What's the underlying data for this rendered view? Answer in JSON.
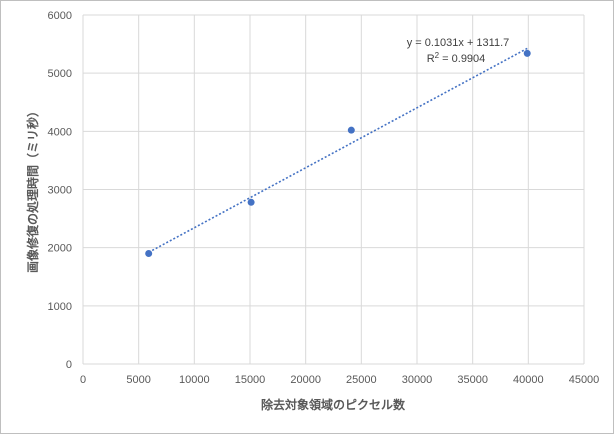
{
  "chart_data": {
    "type": "scatter",
    "title": "",
    "xlabel": "除去対象領域のピクセル数",
    "ylabel": "画像修復の処理時間（ミリ秒）",
    "xlim": [
      0,
      45000
    ],
    "ylim": [
      0,
      6000
    ],
    "xticks": [
      0,
      5000,
      10000,
      15000,
      20000,
      25000,
      30000,
      35000,
      40000,
      45000
    ],
    "yticks": [
      0,
      1000,
      2000,
      3000,
      4000,
      5000,
      6000
    ],
    "grid": true,
    "legend": "none",
    "series": [
      {
        "x": [
          5900,
          15100,
          24100,
          39900
        ],
        "y": [
          1900,
          2780,
          4020,
          5340
        ],
        "color": "#4472c4"
      }
    ],
    "trendline": {
      "type": "linear",
      "slope": 0.1031,
      "intercept": 1311.7,
      "x_range": [
        5900,
        39900
      ],
      "color": "#4472c4",
      "style": "dotted"
    },
    "annotations": {
      "equation": "y = 0.1031x + 1311.7",
      "r_squared_prefix": "R",
      "r_squared_sup": "2",
      "r_squared_suffix": " = 0.9904"
    }
  }
}
